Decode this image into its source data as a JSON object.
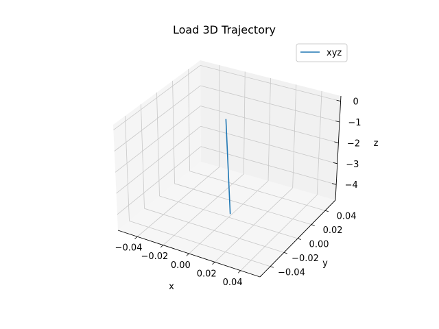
{
  "chart_data": {
    "type": "line",
    "projection": "3d",
    "title": "Load 3D Trajectory",
    "xlabel": "x",
    "ylabel": "y",
    "zlabel": "z",
    "xlim": [
      -0.055,
      0.055
    ],
    "ylim": [
      -0.055,
      0.055
    ],
    "zlim": [
      -4.75,
      0.25
    ],
    "x_ticks": [
      "−0.04",
      "−0.02",
      "0.00",
      "0.02",
      "0.04"
    ],
    "y_ticks": [
      "−0.04",
      "−0.02",
      "0.00",
      "0.02",
      "0.04"
    ],
    "z_ticks": [
      "−4",
      "−3",
      "−2",
      "−1",
      "0"
    ],
    "grid": true,
    "legend": {
      "position": "top-right",
      "entries": [
        "xyz"
      ]
    },
    "series": [
      {
        "name": "xyz",
        "color": "#1f77b4",
        "x": [
          0,
          0
        ],
        "y": [
          0,
          0
        ],
        "z": [
          0,
          -4.5
        ]
      }
    ]
  }
}
